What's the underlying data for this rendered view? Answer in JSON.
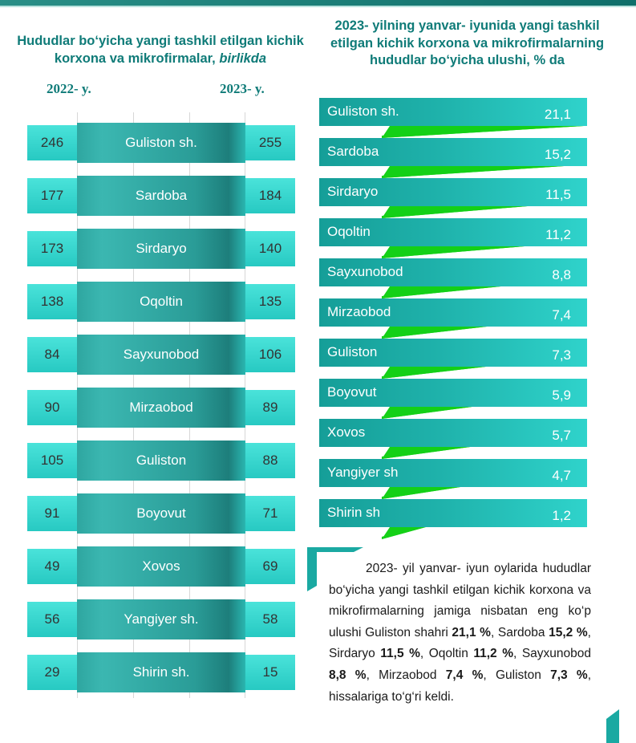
{
  "left": {
    "title_main": "Hududlar bo‘yicha yangi tashkil etilgan kichik korxona va mikrofirmalar,",
    "title_unit": "birlikda",
    "year_a": "2022- y.",
    "year_b": "2023- y."
  },
  "right": {
    "title": "2023- yilning yanvar- iyunida yangi tashkil etilgan kichik korxona va mikrofirmalarning hududlar bo‘yicha ulushi, % da"
  },
  "chart_data": [
    {
      "type": "table",
      "columns": [
        "2022- y.",
        "",
        "2023- y."
      ],
      "rows": [
        {
          "name": "Guliston sh.",
          "y2022": "246",
          "y2023": "255"
        },
        {
          "name": "Sardoba",
          "y2022": "177",
          "y2023": "184"
        },
        {
          "name": "Sirdaryo",
          "y2022": "173",
          "y2023": "140"
        },
        {
          "name": "Oqoltin",
          "y2022": "138",
          "y2023": "135"
        },
        {
          "name": "Sayxunobod",
          "y2022": "84",
          "y2023": "106"
        },
        {
          "name": "Mirzaobod",
          "y2022": "90",
          "y2023": "89"
        },
        {
          "name": "Guliston",
          "y2022": "105",
          "y2023": "88"
        },
        {
          "name": "Boyovut",
          "y2022": "91",
          "y2023": "71"
        },
        {
          "name": "Xovos",
          "y2022": "49",
          "y2023": "69"
        },
        {
          "name": "Yangiyer sh.",
          "y2022": "56",
          "y2023": "58"
        },
        {
          "name": "Shirin sh.",
          "y2022": "29",
          "y2023": "15"
        }
      ]
    },
    {
      "type": "bar",
      "orientation": "horizontal",
      "categories": [
        "Guliston sh.",
        "Sardoba",
        "Sirdaryo",
        "Oqoltin",
        "Sayxunobod",
        "Mirzaobod",
        "Guliston",
        "Boyovut",
        "Xovos",
        "Yangiyer sh",
        "Shirin sh"
      ],
      "values": [
        21.1,
        15.2,
        11.5,
        11.2,
        8.8,
        7.4,
        7.3,
        5.9,
        5.7,
        4.7,
        1.2
      ],
      "labels": [
        "21,1",
        "15,2",
        "11,5",
        "11,2",
        "8,8",
        "7,4",
        "7,3",
        "5,9",
        "5,7",
        "4,7",
        "1,2"
      ],
      "xlim": [
        0,
        21.1
      ]
    }
  ],
  "summary": {
    "p1": "2023- yil yanvar- iyun oylarida hududlar bo‘yicha yangi tashkil etilgan kichik korxona va mikrofirmalarning jamiga nisbatan eng ko‘p ulushi Guliston shahri ",
    "v1": "21,1 %",
    "p2": ", Sardoba ",
    "v2": "15,2 %",
    "p3": ", Sirdaryo ",
    "v3": "11,5 %",
    "p4": ", Oqoltin ",
    "v4": "11,2 %",
    "p5": ", Sayxunobod ",
    "v5": "8,8 %",
    "p6": ", Mirzaobod ",
    "v6": "7,4 %",
    "p7": ", Guliston ",
    "v7": "7,3 %",
    "p8": ", hissalariga to‘g‘ri keldi."
  },
  "colors": {
    "teal_dark": "#0f7b78",
    "cell_cyan": "#2ed3cb",
    "bar_teal": "#1fb2ab",
    "pointer_green": "#14d017"
  }
}
